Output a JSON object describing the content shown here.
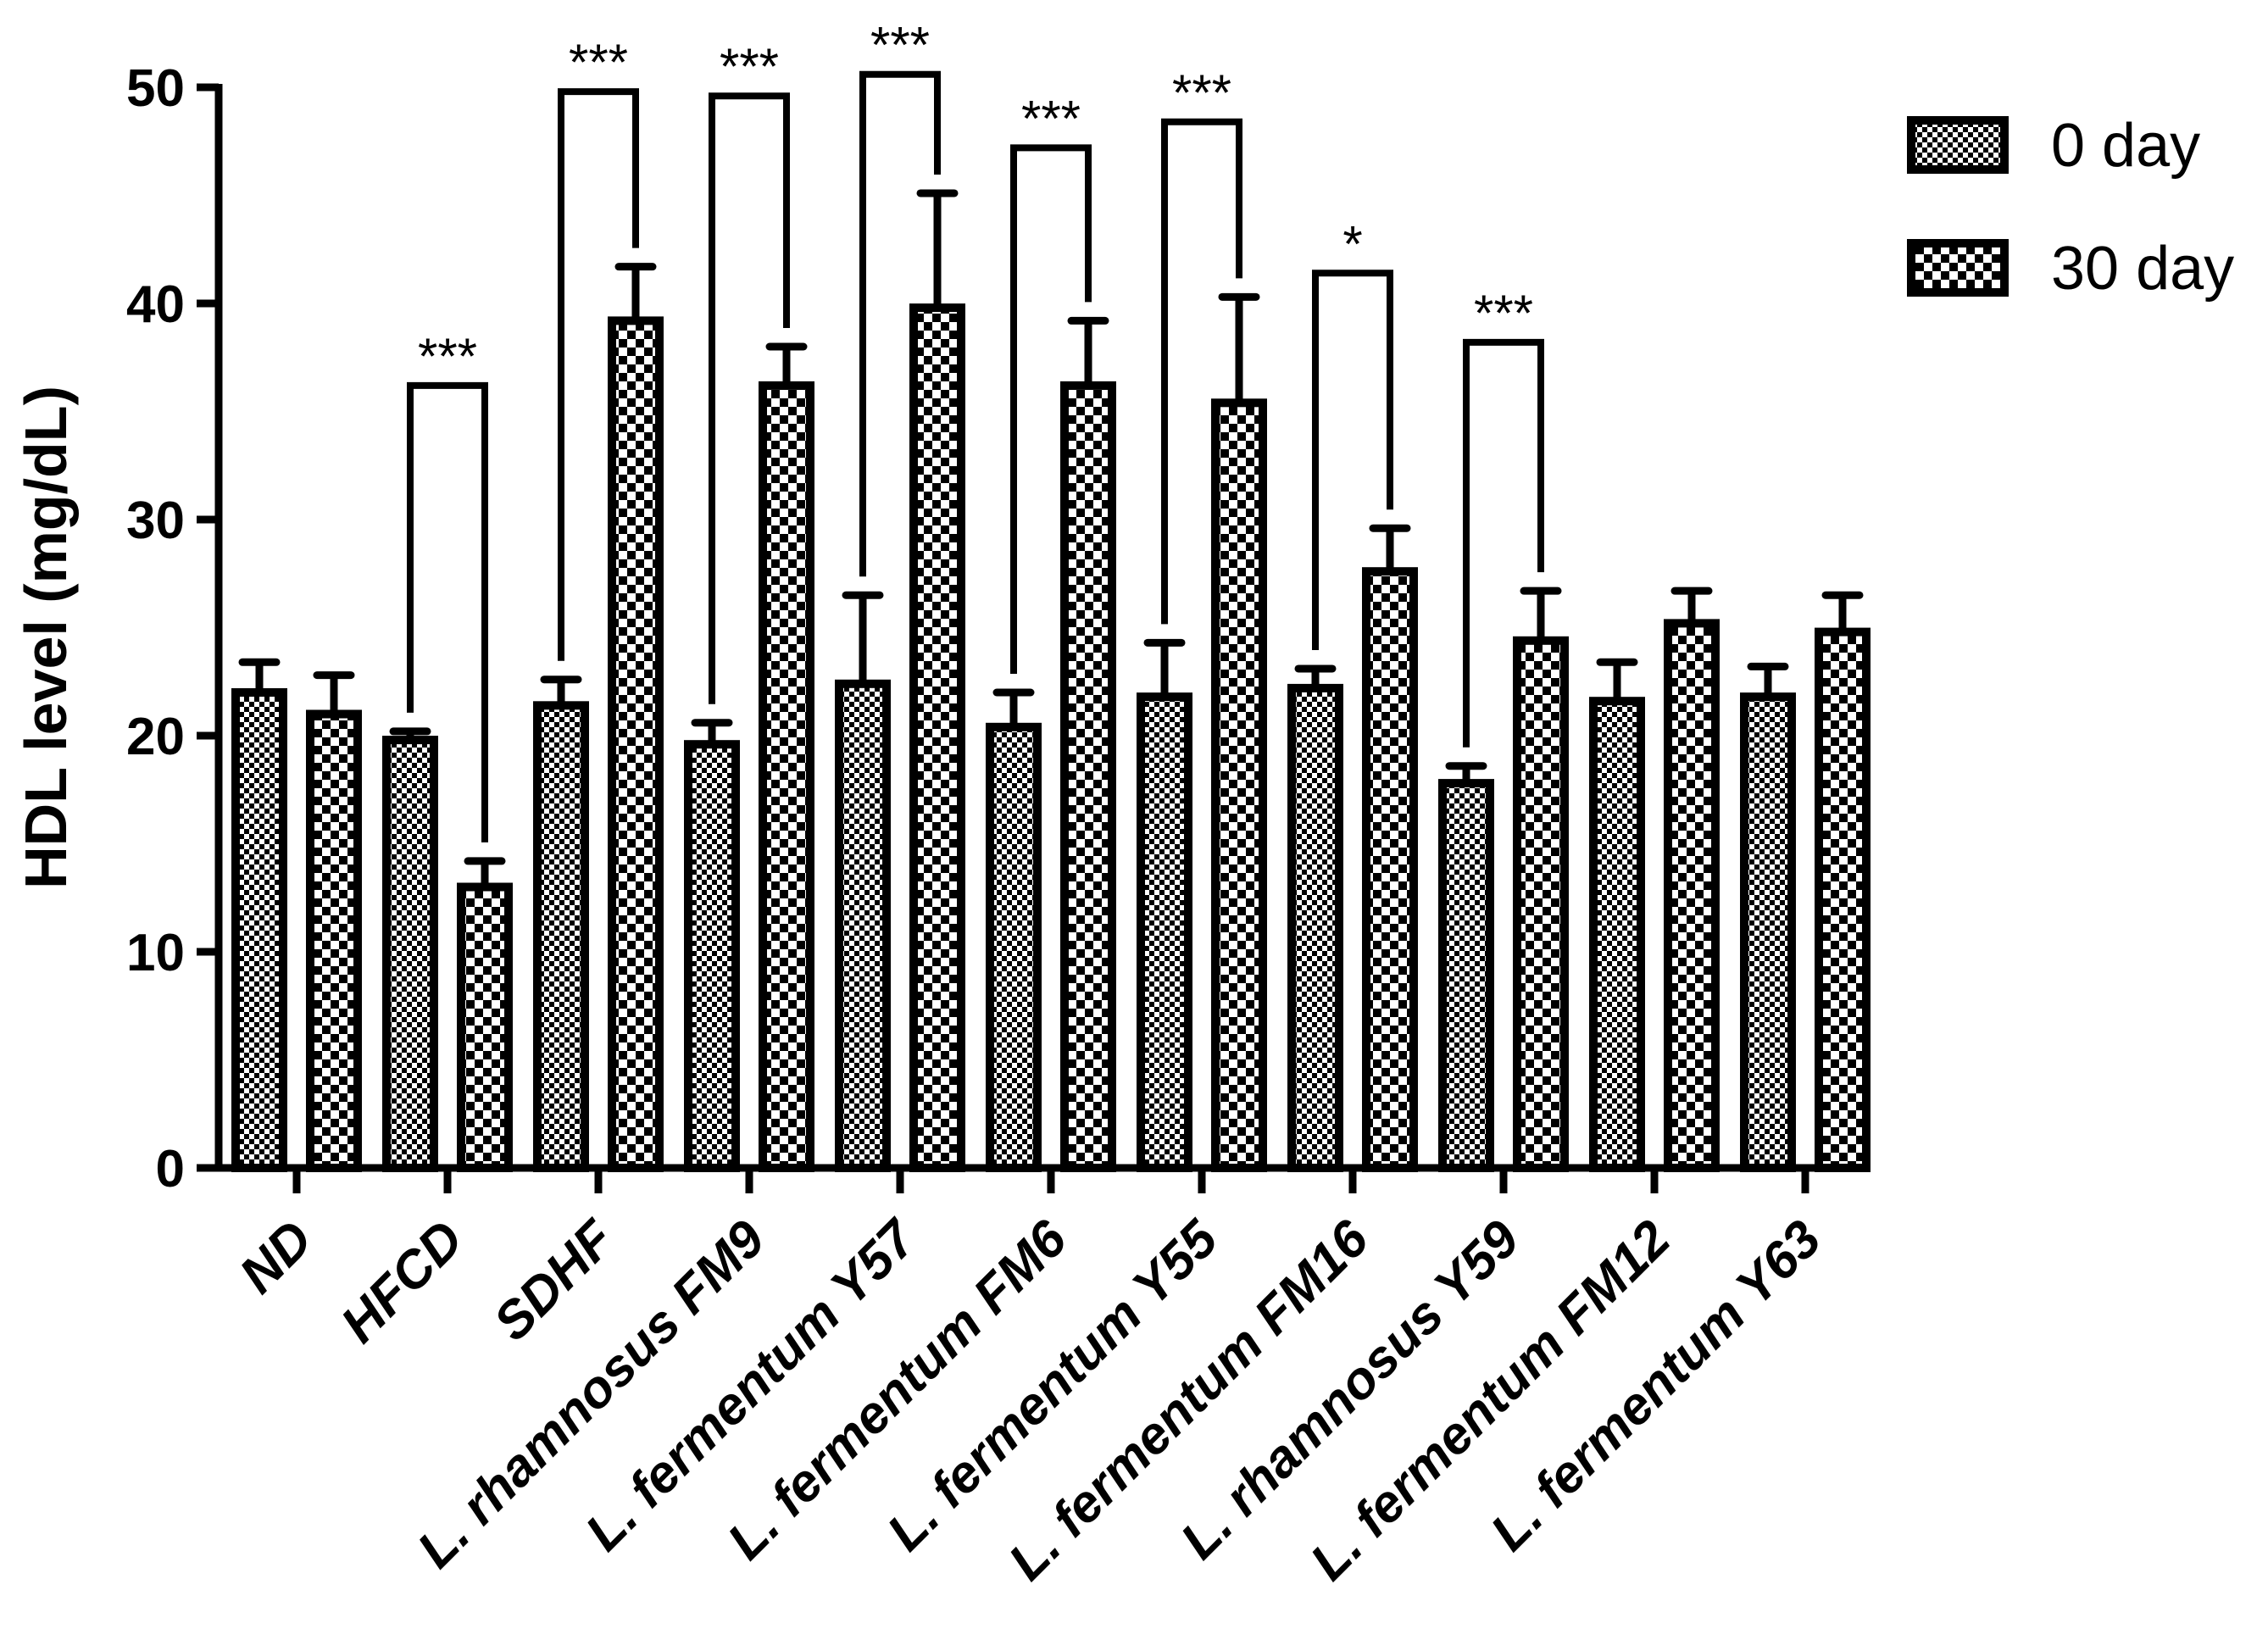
{
  "chart_data": {
    "type": "bar",
    "title": "",
    "xlabel": "",
    "ylabel": "HDL level (mg/dL)",
    "ylim": [
      0,
      50
    ],
    "yticks": [
      "0",
      "10",
      "20",
      "30",
      "40",
      "50"
    ],
    "grid": false,
    "legend_position": "top-right",
    "categories": [
      "ND",
      "HFCD",
      "SDHF",
      "L. rhamnosus FM9",
      "L. fermentum Y57",
      "L. fermentum FM6",
      "L. fermentum Y55",
      "L. fermentum FM16",
      "L. rhamnosus Y59",
      "L. fermentum FM12",
      "L. fermentum Y63"
    ],
    "series": [
      {
        "name": "0 day",
        "pattern": "checker-fine",
        "values": [
          22.0,
          19.8,
          21.4,
          19.6,
          22.4,
          20.4,
          21.8,
          22.2,
          17.8,
          21.6,
          21.8
        ],
        "errors": [
          1.4,
          0.4,
          1.2,
          1.0,
          4.1,
          1.6,
          2.5,
          0.9,
          0.8,
          1.8,
          1.4
        ]
      },
      {
        "name": "30 day",
        "pattern": "checker-coarse",
        "values": [
          21.0,
          13.0,
          39.2,
          36.2,
          39.8,
          36.2,
          35.4,
          27.6,
          24.4,
          25.2,
          24.8
        ],
        "errors": [
          1.8,
          1.2,
          2.5,
          1.8,
          5.3,
          3.0,
          4.9,
          2.0,
          2.3,
          1.5,
          1.7
        ]
      }
    ],
    "significance": [
      {
        "category_index": 1,
        "label": "***",
        "level": 36.2
      },
      {
        "category_index": 2,
        "label": "***",
        "level": 49.8
      },
      {
        "category_index": 3,
        "label": "***",
        "level": 49.6
      },
      {
        "category_index": 4,
        "label": "***",
        "level": 50.6
      },
      {
        "category_index": 5,
        "label": "***",
        "level": 47.2
      },
      {
        "category_index": 6,
        "label": "***",
        "level": 48.4
      },
      {
        "category_index": 7,
        "label": "*",
        "level": 41.4
      },
      {
        "category_index": 8,
        "label": "***",
        "level": 38.2
      }
    ]
  }
}
